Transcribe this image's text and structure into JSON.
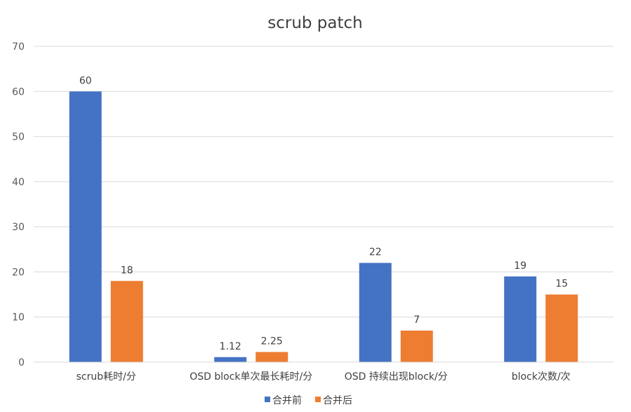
{
  "chart_data": {
    "type": "bar",
    "title": "scrub patch",
    "xlabel": "",
    "ylabel": "",
    "ylim": [
      0,
      70
    ],
    "yticks": [
      0,
      10,
      20,
      30,
      40,
      50,
      60,
      70
    ],
    "categories": [
      "scrub耗时/分",
      "OSD block单次最长耗时/分",
      "OSD 持续出现block/分",
      "block次数/次"
    ],
    "series": [
      {
        "name": "合并前",
        "color": "#4472c4",
        "values": [
          60,
          1.12,
          22,
          19
        ],
        "labels": [
          "60",
          "1.12",
          "22",
          "19"
        ]
      },
      {
        "name": "合并后",
        "color": "#ed7d31",
        "values": [
          18,
          2.25,
          7,
          15
        ],
        "labels": [
          "18",
          "2.25",
          "7",
          "15"
        ]
      }
    ],
    "grid": true,
    "legend_position": "bottom"
  }
}
